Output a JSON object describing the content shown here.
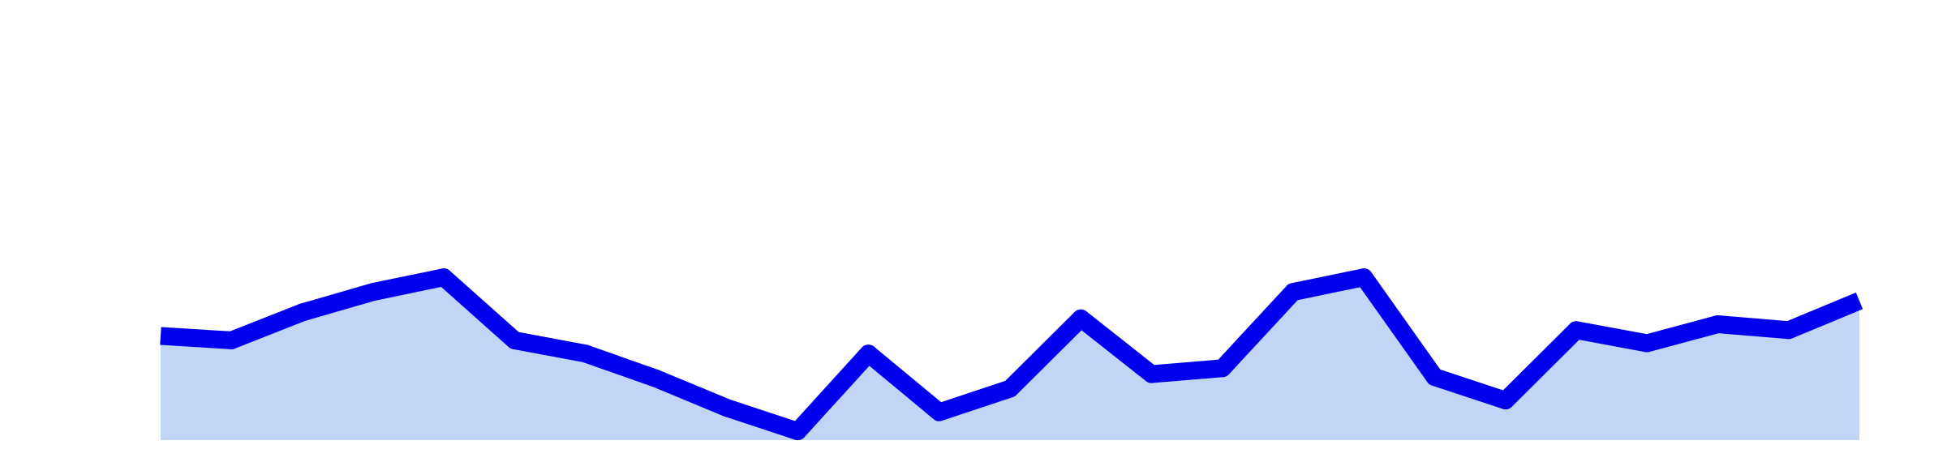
{
  "chart_data": {
    "type": "area",
    "x": [
      0,
      1,
      2,
      3,
      4,
      5,
      6,
      7,
      8,
      9,
      10,
      11,
      12,
      13,
      14,
      15,
      16,
      17,
      18,
      19,
      20,
      21,
      22,
      23,
      24
    ],
    "series": [
      {
        "values": [
          0.71,
          0.68,
          0.87,
          1.01,
          1.11,
          0.68,
          0.59,
          0.42,
          0.22,
          0.06,
          0.59,
          0.19,
          0.35,
          0.83,
          0.45,
          0.49,
          1.01,
          1.11,
          0.43,
          0.27,
          0.75,
          0.66,
          0.79,
          0.75,
          0.95
        ],
        "color": "#0000ee",
        "fill": "#c2d5f6"
      }
    ],
    "title": "",
    "xlabel": "",
    "ylabel": "",
    "xlim": [
      0,
      24
    ],
    "ylim": [
      0,
      3
    ],
    "grid": false,
    "axes_visible": false
  }
}
